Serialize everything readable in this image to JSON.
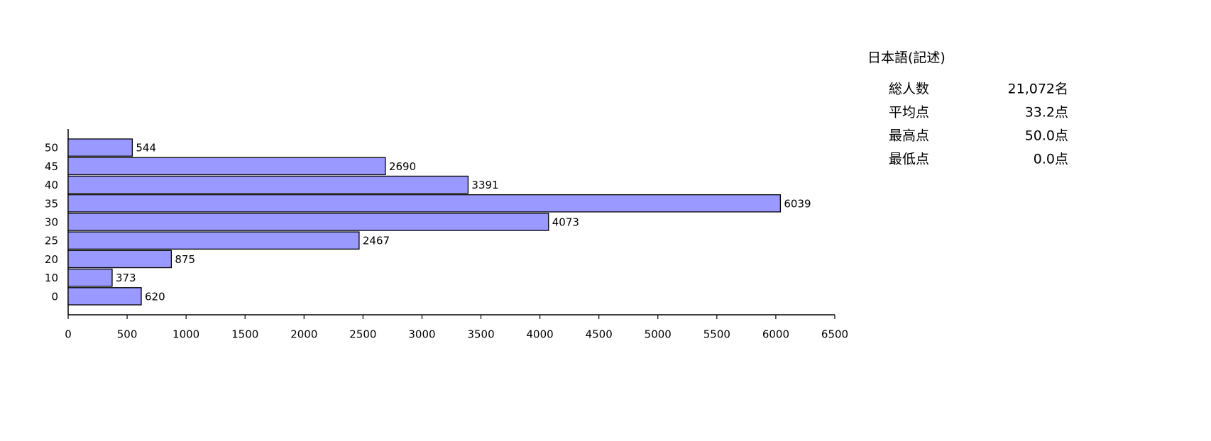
{
  "chart_data": {
    "type": "bar",
    "orientation": "horizontal",
    "categories": [
      "50",
      "45",
      "40",
      "35",
      "30",
      "25",
      "20",
      "10",
      "0"
    ],
    "values": [
      544,
      2690,
      3391,
      6039,
      4073,
      2467,
      875,
      373,
      620
    ],
    "color": "#9999ff",
    "xlim": [
      0,
      6500
    ],
    "xticks": [
      0,
      500,
      1000,
      1500,
      2000,
      2500,
      3000,
      3500,
      4000,
      4500,
      5000,
      5500,
      6000,
      6500
    ]
  },
  "stats": {
    "title": "日本語(記述)",
    "rows": [
      [
        "総人数",
        "21,072名"
      ],
      [
        "平均点",
        "33.2点"
      ],
      [
        "最高点",
        "50.0点"
      ],
      [
        "最低点",
        "0.0点"
      ]
    ]
  }
}
